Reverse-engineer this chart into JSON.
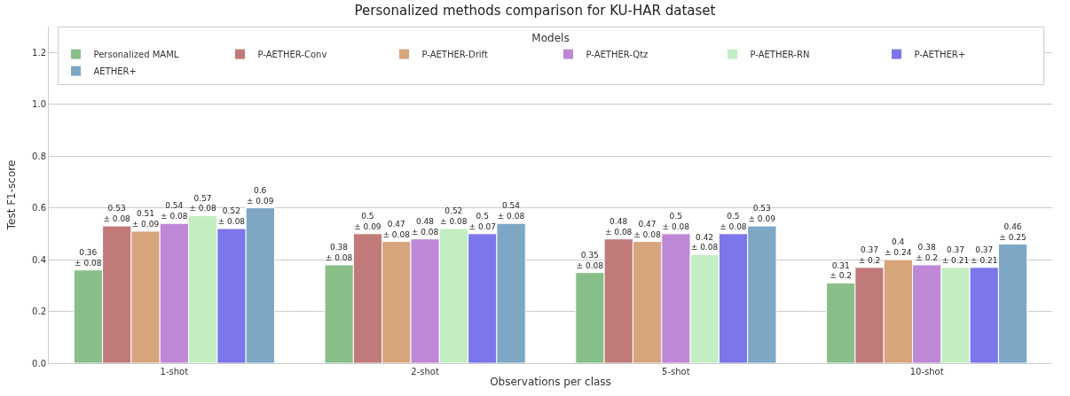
{
  "chart_data": {
    "type": "bar",
    "title": "Personalized methods comparison for KU-HAR dataset",
    "xlabel": "Observations per class",
    "ylabel": "Test F1-score",
    "legend_title": "Models",
    "categories": [
      "1-shot",
      "2-shot",
      "5-shot",
      "10-shot"
    ],
    "ylim": [
      0,
      1.3
    ],
    "yticks": [
      {
        "value": 0,
        "label": "0.0"
      },
      {
        "value": 0.2,
        "label": "0.2"
      },
      {
        "value": 0.4,
        "label": "0.4"
      },
      {
        "value": 0.6,
        "label": "0.6"
      },
      {
        "value": 0.8,
        "label": "0.8"
      },
      {
        "value": 1.0,
        "label": "1.0"
      },
      {
        "value": 1.2,
        "label": "1.2"
      }
    ],
    "grid": "y",
    "legend": "top",
    "series": [
      {
        "name": "Personalized MAML",
        "color": "#88bf88",
        "values": [
          0.36,
          0.38,
          0.35,
          0.31
        ],
        "value_labels": [
          "0.36\n± 0.08",
          "0.38\n± 0.08",
          "0.35\n± 0.08",
          "0.31\n± 0.2"
        ]
      },
      {
        "name": "P-AETHER-Conv",
        "color": "#c07a7a",
        "values": [
          0.53,
          0.5,
          0.48,
          0.37
        ],
        "value_labels": [
          "0.53\n± 0.08",
          "0.5\n± 0.09",
          "0.48\n± 0.08",
          "0.37\n± 0.2"
        ]
      },
      {
        "name": "P-AETHER-Drift",
        "color": "#d6a57c",
        "values": [
          0.51,
          0.47,
          0.47,
          0.4
        ],
        "value_labels": [
          "0.51\n± 0.09",
          "0.47\n± 0.08",
          "0.47\n± 0.08",
          "0.4\n± 0.24"
        ]
      },
      {
        "name": "P-AETHER-Qtz",
        "color": "#bf88d6",
        "values": [
          0.54,
          0.48,
          0.5,
          0.38
        ],
        "value_labels": [
          "0.54\n± 0.08",
          "0.48\n± 0.08",
          "0.5\n± 0.08",
          "0.38\n± 0.2"
        ]
      },
      {
        "name": "P-AETHER-RN",
        "color": "#c3eec3",
        "values": [
          0.57,
          0.52,
          0.42,
          0.37
        ],
        "value_labels": [
          "0.57\n± 0.08",
          "0.52\n± 0.08",
          "0.42\n± 0.08",
          "0.37\n± 0.21"
        ]
      },
      {
        "name": "P-AETHER+",
        "color": "#7b76ea",
        "values": [
          0.52,
          0.5,
          0.5,
          0.37
        ],
        "value_labels": [
          "0.52\n± 0.08",
          "0.5\n± 0.07",
          "0.5\n± 0.08",
          "0.37\n± 0.21"
        ]
      },
      {
        "name": "AETHER+",
        "color": "#7ea7c6",
        "values": [
          0.6,
          0.54,
          0.53,
          0.46
        ],
        "value_labels": [
          "0.6\n± 0.09",
          "0.54\n± 0.08",
          "0.53\n± 0.09",
          "0.46\n± 0.25"
        ]
      }
    ]
  }
}
